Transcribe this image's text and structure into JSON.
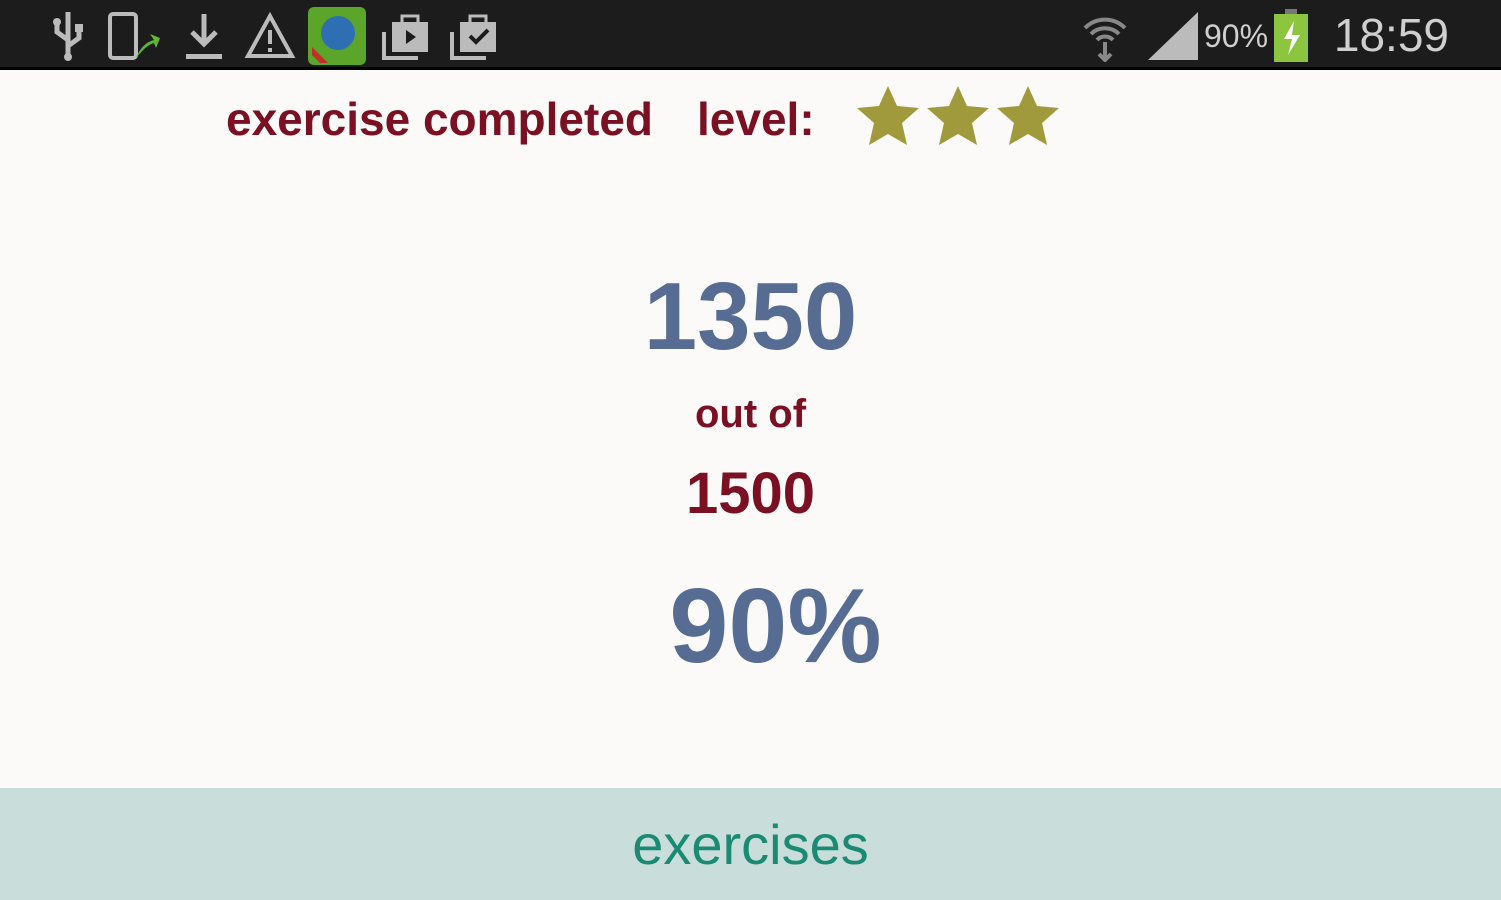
{
  "status_bar": {
    "icons": [
      "usb-icon",
      "phone-sync-icon",
      "download-icon",
      "warning-icon",
      "app-globe-icon",
      "briefcase-play-icon",
      "briefcase-check-icon",
      "wifi-icon",
      "signal-icon",
      "battery-charging-icon"
    ],
    "battery": "90%",
    "time": "18:59",
    "battery_color": "#8cc63f"
  },
  "result": {
    "title": "exercise completed",
    "level_label": "level:",
    "stars": 3,
    "star_color": "#a09a3c",
    "score": "1350",
    "out_of_label": "out of",
    "total": "1500",
    "percent": "90%"
  },
  "bottom": {
    "label": "exercises"
  },
  "colors": {
    "maroon": "#7a1022",
    "blue": "#566c92",
    "bar": "#c9dedb",
    "bar_text": "#1a8a72"
  }
}
